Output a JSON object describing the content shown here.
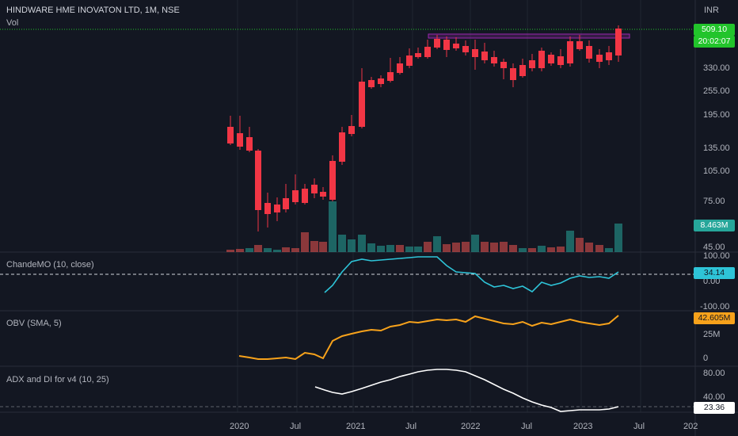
{
  "header": {
    "title": "HINDWARE HME INOVATON LTD, 1M, NSE",
    "volume_label": "Vol",
    "currency": "INR"
  },
  "price_axis": {
    "ticks": [
      "330.00",
      "255.00",
      "195.00",
      "135.00",
      "105.00",
      "75.00",
      "45.00"
    ],
    "last_price": "509.10",
    "countdown": "20:02:07",
    "volume_value": "8.463M"
  },
  "indicators": {
    "cmo": {
      "label": "ChandeMO (10, close)",
      "ticks": [
        "100.00",
        "0.00",
        "-100.00"
      ],
      "value": "34.14"
    },
    "obv": {
      "label": "OBV (SMA, 5)",
      "ticks": [
        "25M",
        "0"
      ],
      "value": "42.605M"
    },
    "adx": {
      "label": "ADX and DI for v4 (10, 25)",
      "ticks": [
        "80.00",
        "40.00"
      ],
      "value": "23.36"
    }
  },
  "time_axis": {
    "labels": [
      "2020",
      "Jul",
      "2021",
      "Jul",
      "2022",
      "Jul",
      "2023",
      "Jul",
      "202"
    ]
  },
  "colors": {
    "background": "#131722",
    "up": "#22d02b",
    "down": "#f23645",
    "vol_up": "#26a69a",
    "vol_down": "#ef5350",
    "cmo_line": "#2ec4d8",
    "obv_line": "#f7a21b",
    "adx_line": "#ffffff",
    "grid": "#1f2430"
  }
}
